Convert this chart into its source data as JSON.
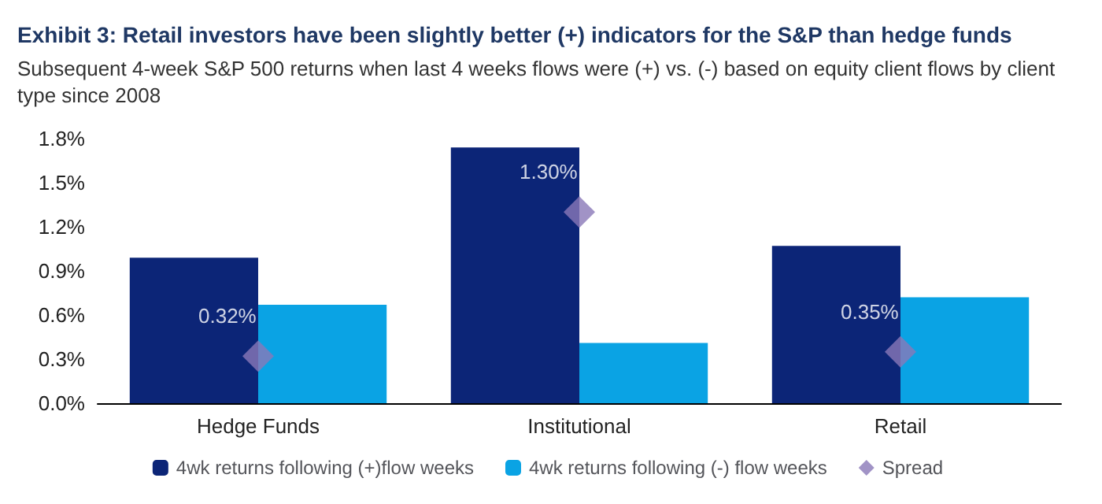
{
  "chart_data": {
    "type": "bar",
    "title": "Exhibit 3: Retail investors have been slightly better (+) indicators for the S&P than hedge funds",
    "subtitle": "Subsequent 4-week S&P 500 returns when last 4 weeks flows were (+) vs. (-) based on equity client flows by client type since 2008",
    "categories": [
      "Hedge Funds",
      "Institutional",
      "Retail"
    ],
    "series": [
      {
        "name": "4wk returns following (+)flow weeks",
        "color": "#0c2577",
        "values": [
          0.99,
          1.74,
          1.07
        ]
      },
      {
        "name": "4wk returns following (-) flow weeks",
        "color": "#0aa3e4",
        "values": [
          0.67,
          0.41,
          0.72
        ]
      },
      {
        "name": "Spread",
        "type": "scatter",
        "color": "#8a78b8",
        "values": [
          0.32,
          1.3,
          0.35
        ],
        "value_labels": [
          "0.32%",
          "1.30%",
          "0.35%"
        ]
      }
    ],
    "ylim": [
      0,
      1.8
    ],
    "yticks": [
      {
        "value": 0,
        "label": "0.0%"
      },
      {
        "value": 0.3,
        "label": "0.3%"
      },
      {
        "value": 0.6,
        "label": "0.6%"
      },
      {
        "value": 0.9,
        "label": "0.9%"
      },
      {
        "value": 1.2,
        "label": "1.2%"
      },
      {
        "value": 1.5,
        "label": "1.5%"
      },
      {
        "value": 1.8,
        "label": "1.8%"
      }
    ],
    "grid": false,
    "legend": "bottom",
    "marker": "diamond"
  }
}
